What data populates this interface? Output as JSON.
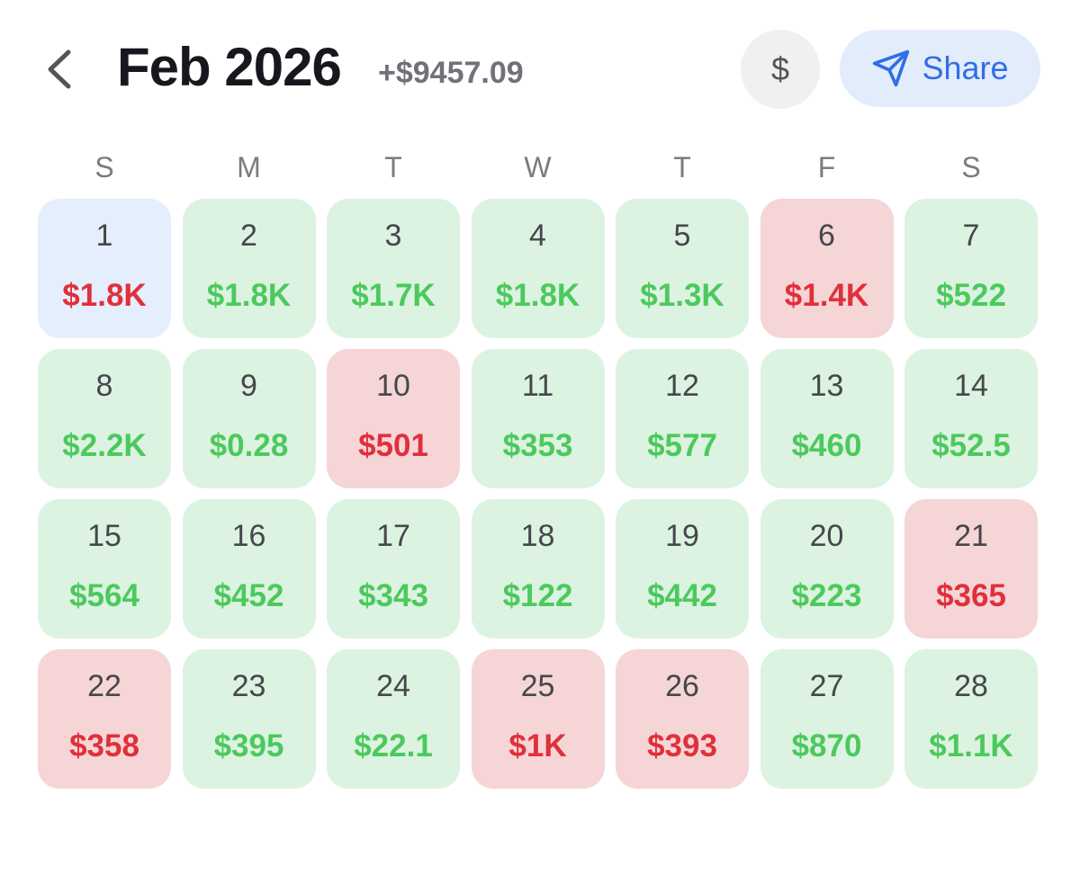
{
  "header": {
    "title": "Feb 2026",
    "total": "+$9457.09",
    "currency_button": "$",
    "share_button": "Share"
  },
  "weekdays": [
    "S",
    "M",
    "T",
    "W",
    "T",
    "F",
    "S"
  ],
  "days": [
    {
      "day": "1",
      "amount": "$1.8K",
      "tone": "loss",
      "selected": true
    },
    {
      "day": "2",
      "amount": "$1.8K",
      "tone": "gain"
    },
    {
      "day": "3",
      "amount": "$1.7K",
      "tone": "gain"
    },
    {
      "day": "4",
      "amount": "$1.8K",
      "tone": "gain"
    },
    {
      "day": "5",
      "amount": "$1.3K",
      "tone": "gain"
    },
    {
      "day": "6",
      "amount": "$1.4K",
      "tone": "loss"
    },
    {
      "day": "7",
      "amount": "$522",
      "tone": "gain"
    },
    {
      "day": "8",
      "amount": "$2.2K",
      "tone": "gain"
    },
    {
      "day": "9",
      "amount": "$0.28",
      "tone": "gain"
    },
    {
      "day": "10",
      "amount": "$501",
      "tone": "loss"
    },
    {
      "day": "11",
      "amount": "$353",
      "tone": "gain"
    },
    {
      "day": "12",
      "amount": "$577",
      "tone": "gain"
    },
    {
      "day": "13",
      "amount": "$460",
      "tone": "gain"
    },
    {
      "day": "14",
      "amount": "$52.5",
      "tone": "gain"
    },
    {
      "day": "15",
      "amount": "$564",
      "tone": "gain"
    },
    {
      "day": "16",
      "amount": "$452",
      "tone": "gain"
    },
    {
      "day": "17",
      "amount": "$343",
      "tone": "gain"
    },
    {
      "day": "18",
      "amount": "$122",
      "tone": "gain"
    },
    {
      "day": "19",
      "amount": "$442",
      "tone": "gain"
    },
    {
      "day": "20",
      "amount": "$223",
      "tone": "gain"
    },
    {
      "day": "21",
      "amount": "$365",
      "tone": "loss"
    },
    {
      "day": "22",
      "amount": "$358",
      "tone": "loss"
    },
    {
      "day": "23",
      "amount": "$395",
      "tone": "gain"
    },
    {
      "day": "24",
      "amount": "$22.1",
      "tone": "gain"
    },
    {
      "day": "25",
      "amount": "$1K",
      "tone": "loss"
    },
    {
      "day": "26",
      "amount": "$393",
      "tone": "loss"
    },
    {
      "day": "27",
      "amount": "$870",
      "tone": "gain"
    },
    {
      "day": "28",
      "amount": "$1.1K",
      "tone": "gain"
    }
  ]
}
